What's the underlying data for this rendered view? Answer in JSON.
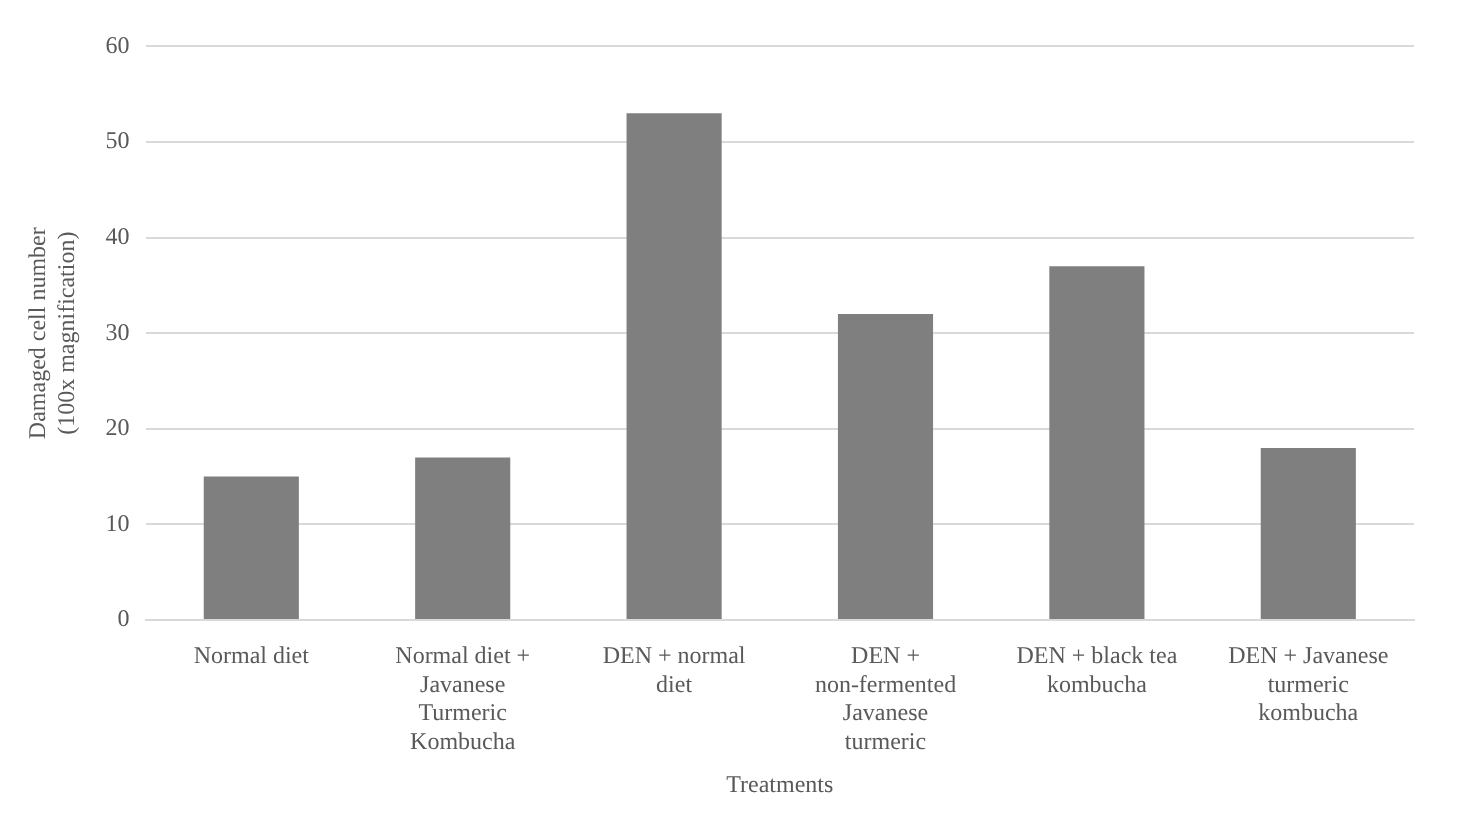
{
  "chart_data": {
    "type": "bar",
    "xlabel": "Treatments",
    "ylabel": "Damaged cell number (100x magnification)",
    "categories": [
      "Normal diet",
      "Normal diet + Javanese Turmeric Kombucha",
      "DEN + normal diet",
      "DEN + non-fermented Javanese turmeric",
      "DEN + black tea kombucha",
      "DEN + Javanese turmeric kombucha"
    ],
    "values": [
      15,
      17,
      53,
      32,
      37,
      18
    ],
    "color": "#7f7f7f",
    "ylim": [
      0,
      60
    ],
    "yticks": [
      0,
      10,
      20,
      30,
      40,
      50,
      60
    ],
    "grid": "y",
    "legend": false
  }
}
